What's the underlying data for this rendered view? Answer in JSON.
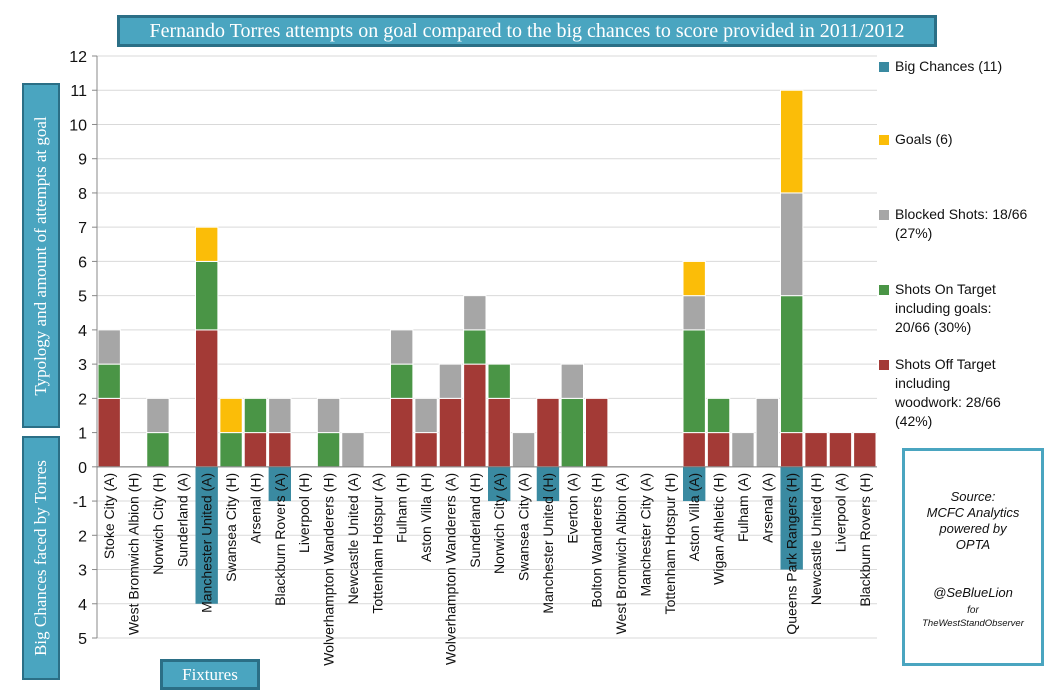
{
  "title": "Fernando Torres attempts on goal compared to the big chances to score provided in 2011/2012",
  "ylabel_top": "Typology and amount of attempts at goal",
  "ylabel_bottom": "Big Chances faced by Torres",
  "xlabel": "Fixtures",
  "colors": {
    "off_target": "#a33a36",
    "on_target": "#4a9546",
    "blocked": "#a6a6a6",
    "goals": "#fbbd08",
    "big_chance": "#3a8aa1"
  },
  "legend": [
    {
      "key": "big_chance",
      "label": "Big Chances (11)"
    },
    {
      "key": "goals",
      "label": "Goals (6)"
    },
    {
      "key": "blocked",
      "label": "Blocked Shots: 18/66\n(27%)"
    },
    {
      "key": "on_target",
      "label": "Shots On Target\nincluding goals:\n20/66 (30%)"
    },
    {
      "key": "off_target",
      "label": "Shots Off Target\nincluding\nwoodwork: 28/66\n(42%)"
    }
  ],
  "source": {
    "lines": [
      "Source:",
      "MCFC Analytics",
      "powered by",
      "OPTA"
    ],
    "handle": "@SeBlueLion",
    "for_text": "for",
    "site": "TheWestStandObserver"
  },
  "chart_data": {
    "type": "bar",
    "stacked": true,
    "title": "Fernando Torres attempts on goal compared to the big chances to score provided in 2011/2012",
    "xlabel": "Fixtures",
    "ylabel": "Typology and amount of attempts at goal / Big Chances faced by Torres",
    "ylim": [
      -5,
      12
    ],
    "yticks": [
      -5,
      -4,
      -3,
      -2,
      -1,
      0,
      1,
      2,
      3,
      4,
      5,
      6,
      7,
      8,
      9,
      10,
      11,
      12
    ],
    "ytick_labels": [
      "5",
      "4",
      "3",
      "2",
      "-1",
      "0",
      "1",
      "2",
      "3",
      "4",
      "5",
      "6",
      "7",
      "8",
      "9",
      "10",
      "11",
      "12"
    ],
    "grid": true,
    "legend_position": "right",
    "categories": [
      "Stoke City (A)",
      "West Bromwich Albion (H)",
      "Norwich City (H)",
      "Sunderland (A)",
      "Manchester United (A)",
      "Swansea City (H)",
      "Arsenal (H)",
      "Blackburn Rovers (A)",
      "Liverpool (H)",
      "Wolverhampton Wanderers (H)",
      "Newcastle United (A)",
      "Tottenham Hotspur (A)",
      "Fulham (H)",
      "Aston Villa (H)",
      "Wolverhampton Wanderers (A)",
      "Sunderland (H)",
      "Norwich City (A)",
      "Swansea City (A)",
      "Manchester United (H)",
      "Everton (A)",
      "Bolton Wanderers (H)",
      "West Bromwich Albion (A)",
      "Manchester City (A)",
      "Tottenham Hotspur (H)",
      "Aston Villa (A)",
      "Wigan Athletic (H)",
      "Fulham (A)",
      "Arsenal (A)",
      "Queens Park Rangers (H)",
      "Newcastle United (H)",
      "Liverpool (A)",
      "Blackburn Rovers (H)"
    ],
    "series": [
      {
        "name": "Shots Off Target",
        "key": "off_target",
        "values": [
          2,
          0,
          0,
          0,
          4,
          0,
          1,
          1,
          0,
          0,
          0,
          0,
          2,
          1,
          2,
          3,
          2,
          0,
          2,
          0,
          2,
          0,
          0,
          0,
          1,
          1,
          0,
          0,
          1,
          1,
          1,
          1
        ]
      },
      {
        "name": "Shots On Target",
        "key": "on_target",
        "values": [
          1,
          0,
          1,
          0,
          2,
          1,
          1,
          0,
          0,
          1,
          0,
          0,
          1,
          0,
          0,
          1,
          1,
          0,
          0,
          2,
          0,
          0,
          0,
          0,
          3,
          1,
          0,
          0,
          4,
          0,
          0,
          0
        ]
      },
      {
        "name": "Blocked Shots",
        "key": "blocked",
        "values": [
          1,
          0,
          1,
          0,
          0,
          0,
          0,
          1,
          0,
          1,
          1,
          0,
          1,
          1,
          1,
          1,
          0,
          1,
          0,
          1,
          0,
          0,
          0,
          0,
          1,
          0,
          1,
          2,
          3,
          0,
          0,
          0
        ]
      },
      {
        "name": "Goals",
        "key": "goals",
        "values": [
          0,
          0,
          0,
          0,
          1,
          1,
          0,
          0,
          0,
          0,
          0,
          0,
          0,
          0,
          0,
          0,
          0,
          0,
          0,
          0,
          0,
          0,
          0,
          0,
          1,
          0,
          0,
          0,
          3,
          0,
          0,
          0
        ]
      },
      {
        "name": "Big Chances",
        "key": "big_chance",
        "values": [
          0,
          0,
          0,
          0,
          -4,
          0,
          0,
          -1,
          0,
          0,
          0,
          0,
          0,
          0,
          0,
          0,
          -1,
          0,
          -1,
          0,
          0,
          0,
          0,
          0,
          -1,
          0,
          0,
          0,
          -3,
          0,
          0,
          0
        ]
      }
    ]
  }
}
